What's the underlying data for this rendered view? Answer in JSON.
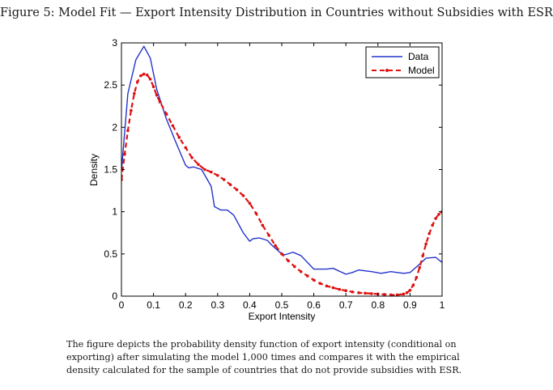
{
  "figure": {
    "title": "Figure 5: Model Fit — Export Intensity Distribution in Countries without Subsidies with ESR",
    "caption_lines": [
      "The figure depicts the probability density function of export intensity (conditional on",
      "exporting) after simulating the model 1,000 times and compares it with the empirical",
      "density calculated for the sample of countries that do not provide subsidies with ESR."
    ]
  },
  "chart_data": {
    "type": "line",
    "title": "",
    "xlabel": "Export Intensity",
    "ylabel": "Density",
    "xlim": [
      0,
      1
    ],
    "ylim": [
      0,
      3
    ],
    "xticks": [
      0,
      0.1,
      0.2,
      0.3,
      0.4,
      0.5,
      0.6,
      0.7,
      0.8,
      0.9,
      1
    ],
    "xtick_labels": [
      "0",
      "0.1",
      "0.2",
      "0.3",
      "0.4",
      "0.5",
      "0.6",
      "0.7",
      "0.8",
      "0.9",
      "1"
    ],
    "yticks": [
      0,
      0.5,
      1,
      1.5,
      2,
      2.5,
      3
    ],
    "ytick_labels": [
      "0",
      "0.5",
      "1",
      "1.5",
      "2",
      "2.5",
      "3"
    ],
    "legend_position": "top-right",
    "grid": false,
    "series": [
      {
        "name": "Data",
        "style": "solid",
        "color": "#2233cc",
        "x": [
          0,
          0.02,
          0.045,
          0.07,
          0.09,
          0.11,
          0.14,
          0.17,
          0.2,
          0.21,
          0.225,
          0.25,
          0.28,
          0.29,
          0.31,
          0.33,
          0.35,
          0.38,
          0.4,
          0.41,
          0.43,
          0.455,
          0.47,
          0.5,
          0.51,
          0.535,
          0.56,
          0.6,
          0.64,
          0.66,
          0.7,
          0.72,
          0.74,
          0.78,
          0.81,
          0.84,
          0.88,
          0.9,
          0.93,
          0.95,
          0.98,
          1
        ],
        "y": [
          1.48,
          2.4,
          2.8,
          2.96,
          2.82,
          2.45,
          2.1,
          1.82,
          1.55,
          1.52,
          1.53,
          1.5,
          1.3,
          1.06,
          1.02,
          1.02,
          0.96,
          0.75,
          0.65,
          0.68,
          0.69,
          0.66,
          0.6,
          0.5,
          0.49,
          0.52,
          0.48,
          0.32,
          0.32,
          0.33,
          0.26,
          0.28,
          0.31,
          0.29,
          0.27,
          0.29,
          0.27,
          0.28,
          0.38,
          0.45,
          0.46,
          0.4
        ]
      },
      {
        "name": "Model",
        "style": "dashed-dot-markers",
        "color": "#dd1111",
        "x": [
          0,
          0.01,
          0.02,
          0.03,
          0.04,
          0.05,
          0.06,
          0.07,
          0.08,
          0.09,
          0.1,
          0.11,
          0.12,
          0.14,
          0.16,
          0.18,
          0.2,
          0.22,
          0.24,
          0.26,
          0.28,
          0.3,
          0.32,
          0.34,
          0.36,
          0.38,
          0.4,
          0.42,
          0.44,
          0.46,
          0.48,
          0.5,
          0.52,
          0.54,
          0.56,
          0.58,
          0.6,
          0.62,
          0.64,
          0.66,
          0.68,
          0.7,
          0.72,
          0.74,
          0.76,
          0.78,
          0.8,
          0.82,
          0.84,
          0.86,
          0.88,
          0.89,
          0.9,
          0.91,
          0.92,
          0.93,
          0.94,
          0.95,
          0.96,
          0.97,
          0.98,
          0.99,
          1
        ],
        "y": [
          1.38,
          1.68,
          1.96,
          2.2,
          2.4,
          2.54,
          2.61,
          2.63,
          2.62,
          2.57,
          2.48,
          2.38,
          2.3,
          2.16,
          2.02,
          1.88,
          1.76,
          1.64,
          1.56,
          1.5,
          1.47,
          1.43,
          1.38,
          1.32,
          1.26,
          1.19,
          1.1,
          0.98,
          0.84,
          0.72,
          0.6,
          0.5,
          0.42,
          0.35,
          0.29,
          0.24,
          0.19,
          0.15,
          0.12,
          0.1,
          0.08,
          0.065,
          0.05,
          0.04,
          0.035,
          0.03,
          0.025,
          0.02,
          0.015,
          0.015,
          0.025,
          0.04,
          0.07,
          0.13,
          0.22,
          0.34,
          0.48,
          0.62,
          0.74,
          0.84,
          0.92,
          0.97,
          1.0
        ]
      }
    ]
  }
}
